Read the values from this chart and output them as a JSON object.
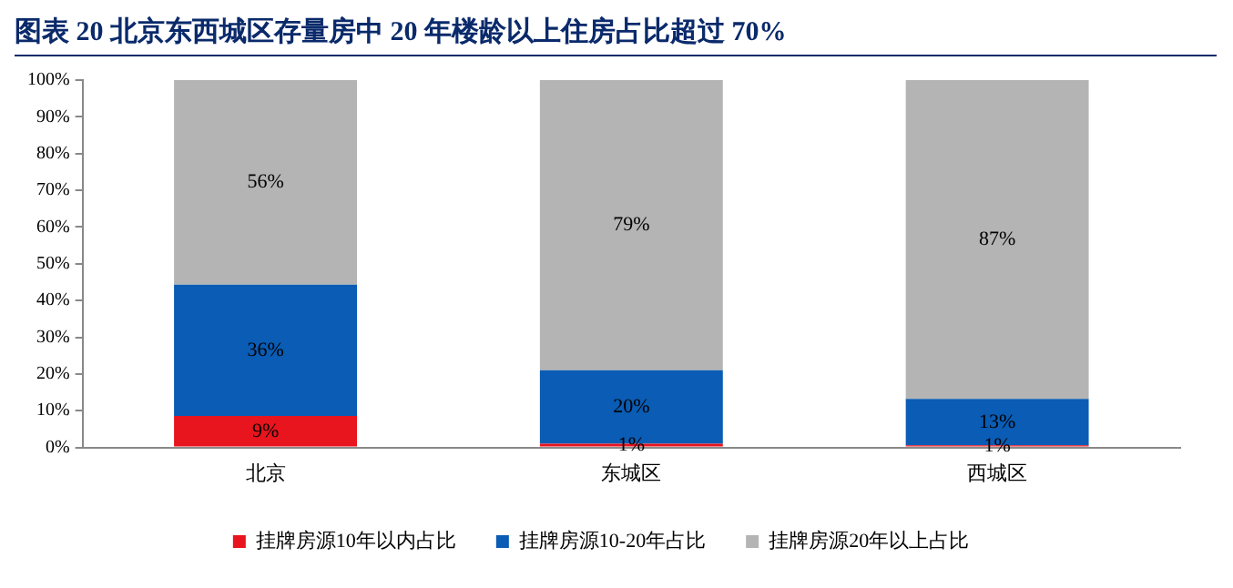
{
  "chart_data": {
    "type": "bar",
    "title": "图表 20  北京东西城区存量房中 20 年楼龄以上住房占比超过 70%",
    "categories": [
      "北京",
      "东城区",
      "西城区"
    ],
    "stacked": true,
    "series": [
      {
        "name": "挂牌房源10年以内占比",
        "color": "#e8141e",
        "values": [
          8.6,
          1,
          0.6
        ],
        "value_labels": [
          "9%",
          "1%",
          "1%"
        ]
      },
      {
        "name": "挂牌房源10-20年占比",
        "color": "#0a5cb4",
        "values": [
          35.7,
          20,
          12.6
        ],
        "value_labels": [
          "36%",
          "20%",
          "13%"
        ]
      },
      {
        "name": "挂牌房源20年以上占比",
        "color": "#b4b4b4",
        "values": [
          55.7,
          79,
          86.8
        ],
        "value_labels": [
          "56%",
          "79%",
          "87%"
        ]
      }
    ],
    "ylim": [
      0,
      100
    ],
    "yticks": [
      {
        "value": 0,
        "label": "0%"
      },
      {
        "value": 10,
        "label": "10%"
      },
      {
        "value": 20,
        "label": "20%"
      },
      {
        "value": 30,
        "label": "30%"
      },
      {
        "value": 40,
        "label": "40%"
      },
      {
        "value": 50,
        "label": "50%"
      },
      {
        "value": 60,
        "label": "60%"
      },
      {
        "value": 70,
        "label": "70%"
      },
      {
        "value": 80,
        "label": "80%"
      },
      {
        "value": 90,
        "label": "90%"
      },
      {
        "value": 100,
        "label": "100%"
      }
    ],
    "grid": false,
    "legend": "bottom"
  }
}
